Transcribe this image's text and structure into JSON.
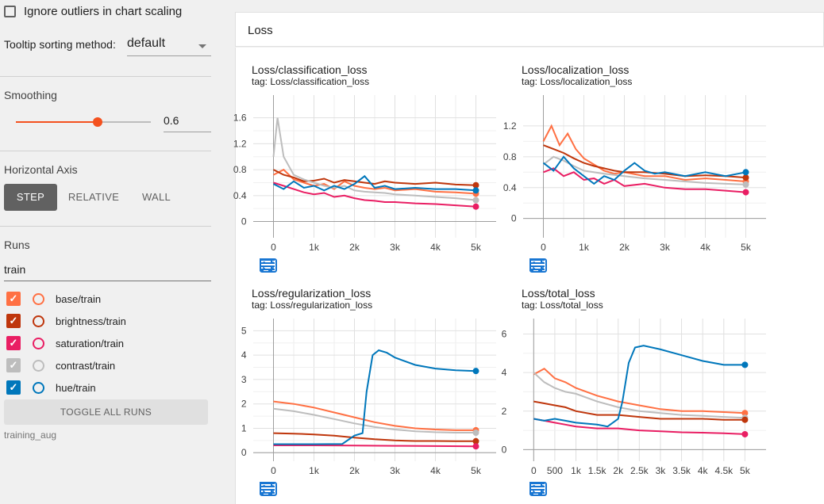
{
  "sidebar": {
    "ignore_outliers_label": "Ignore outliers in chart scaling",
    "tooltip_sorting_label": "Tooltip sorting method:",
    "tooltip_sorting_value": "default",
    "smoothing_label": "Smoothing",
    "smoothing_value": "0.6",
    "smoothing_fraction": 0.6,
    "horizontal_axis_label": "Horizontal Axis",
    "axis_options": [
      "STEP",
      "RELATIVE",
      "WALL"
    ],
    "axis_selected": "STEP",
    "runs_label": "Runs",
    "runs_filter_value": "train",
    "runs": [
      {
        "name": "base/train",
        "color": "#ff7043",
        "checked": true
      },
      {
        "name": "brightness/train",
        "color": "#bf360c",
        "checked": true
      },
      {
        "name": "saturation/train",
        "color": "#e91e63",
        "checked": true
      },
      {
        "name": "contrast/train",
        "color": "#bdbdbd",
        "checked": true
      },
      {
        "name": "hue/train",
        "color": "#0077bb",
        "checked": true
      }
    ],
    "toggle_all_label": "TOGGLE ALL RUNS",
    "experiment_name": "training_aug"
  },
  "main": {
    "section_title": "Loss"
  },
  "colors": {
    "accent": "#f4511e",
    "tool_icon": "#1976d2"
  },
  "chart_data": [
    {
      "type": "line",
      "title": "Loss/classification_loss",
      "tag": "tag: Loss/classification_loss",
      "xticks": [
        0,
        1000,
        2000,
        3000,
        4000,
        5000
      ],
      "xtick_labels": [
        "0",
        "1k",
        "2k",
        "3k",
        "4k",
        "5k"
      ],
      "yticks": [
        0,
        0.4,
        0.8,
        1.2,
        1.6
      ],
      "ytick_labels": [
        "0",
        "0.4",
        "0.8",
        "1.2",
        "1.6"
      ],
      "xlim": [
        -500,
        5500
      ],
      "ylim": [
        -0.25,
        1.95
      ],
      "series": [
        {
          "color": "#ff7043",
          "x": [
            0,
            250,
            500,
            750,
            1000,
            1250,
            1500,
            1750,
            2000,
            2250,
            2500,
            2750,
            3000,
            3500,
            4000,
            4500,
            5000
          ],
          "y": [
            0.72,
            0.8,
            0.65,
            0.6,
            0.55,
            0.58,
            0.5,
            0.62,
            0.55,
            0.52,
            0.5,
            0.52,
            0.48,
            0.5,
            0.46,
            0.45,
            0.43
          ]
        },
        {
          "color": "#bf360c",
          "x": [
            0,
            250,
            500,
            750,
            1000,
            1250,
            1500,
            1750,
            2000,
            2250,
            2500,
            2750,
            3000,
            3500,
            4000,
            4500,
            5000
          ],
          "y": [
            0.8,
            0.72,
            0.68,
            0.62,
            0.63,
            0.66,
            0.6,
            0.64,
            0.62,
            0.6,
            0.58,
            0.62,
            0.6,
            0.58,
            0.6,
            0.57,
            0.56
          ]
        },
        {
          "color": "#e91e63",
          "x": [
            0,
            250,
            500,
            750,
            1000,
            1250,
            1500,
            1750,
            2000,
            2250,
            2500,
            2750,
            3000,
            3500,
            4000,
            4500,
            5000
          ],
          "y": [
            0.6,
            0.55,
            0.5,
            0.45,
            0.42,
            0.44,
            0.38,
            0.4,
            0.36,
            0.33,
            0.32,
            0.3,
            0.3,
            0.28,
            0.27,
            0.25,
            0.23
          ]
        },
        {
          "color": "#bdbdbd",
          "x": [
            0,
            100,
            250,
            500,
            750,
            1000,
            1250,
            1500,
            1750,
            2000,
            2250,
            2500,
            2750,
            3000,
            3500,
            4000,
            4500,
            5000
          ],
          "y": [
            1.0,
            1.6,
            1.0,
            0.72,
            0.65,
            0.6,
            0.55,
            0.52,
            0.55,
            0.48,
            0.46,
            0.45,
            0.44,
            0.42,
            0.4,
            0.38,
            0.36,
            0.33
          ]
        },
        {
          "color": "#0077bb",
          "x": [
            0,
            250,
            500,
            750,
            1000,
            1250,
            1500,
            1750,
            2000,
            2250,
            2500,
            2750,
            3000,
            3500,
            4000,
            4500,
            5000
          ],
          "y": [
            0.58,
            0.5,
            0.62,
            0.52,
            0.55,
            0.48,
            0.55,
            0.5,
            0.58,
            0.7,
            0.52,
            0.55,
            0.5,
            0.52,
            0.5,
            0.5,
            0.48
          ]
        }
      ]
    },
    {
      "type": "line",
      "title": "Loss/localization_loss",
      "tag": "tag: Loss/localization_loss",
      "xticks": [
        0,
        1000,
        2000,
        3000,
        4000,
        5000
      ],
      "xtick_labels": [
        "0",
        "1k",
        "2k",
        "3k",
        "4k",
        "5k"
      ],
      "yticks": [
        0,
        0.4,
        0.8,
        1.2
      ],
      "ytick_labels": [
        "0",
        "0.4",
        "0.8",
        "1.2"
      ],
      "xlim": [
        -500,
        5500
      ],
      "ylim": [
        -0.25,
        1.6
      ],
      "series": [
        {
          "color": "#ff7043",
          "x": [
            0,
            200,
            400,
            600,
            800,
            1000,
            1250,
            1500,
            1750,
            2000,
            2500,
            3000,
            3500,
            4000,
            4500,
            5000
          ],
          "y": [
            1.0,
            1.2,
            0.95,
            1.1,
            0.9,
            0.78,
            0.7,
            0.62,
            0.58,
            0.6,
            0.55,
            0.55,
            0.5,
            0.52,
            0.5,
            0.48
          ]
        },
        {
          "color": "#bf360c",
          "x": [
            0,
            250,
            500,
            750,
            1000,
            1250,
            1500,
            1750,
            2000,
            2500,
            3000,
            3500,
            4000,
            4500,
            5000
          ],
          "y": [
            0.95,
            0.9,
            0.85,
            0.78,
            0.72,
            0.68,
            0.65,
            0.62,
            0.6,
            0.6,
            0.58,
            0.55,
            0.56,
            0.55,
            0.53
          ]
        },
        {
          "color": "#e91e63",
          "x": [
            0,
            250,
            500,
            750,
            1000,
            1250,
            1500,
            1750,
            2000,
            2500,
            3000,
            3500,
            4000,
            4500,
            5000
          ],
          "y": [
            0.6,
            0.65,
            0.55,
            0.6,
            0.5,
            0.52,
            0.45,
            0.5,
            0.42,
            0.45,
            0.4,
            0.38,
            0.38,
            0.36,
            0.34
          ]
        },
        {
          "color": "#bdbdbd",
          "x": [
            0,
            250,
            500,
            750,
            1000,
            1500,
            2000,
            2500,
            3000,
            3500,
            4000,
            4500,
            5000
          ],
          "y": [
            0.7,
            0.8,
            0.75,
            0.68,
            0.62,
            0.58,
            0.55,
            0.52,
            0.5,
            0.48,
            0.46,
            0.45,
            0.44
          ]
        },
        {
          "color": "#0077bb",
          "x": [
            0,
            250,
            500,
            750,
            1000,
            1250,
            1500,
            1750,
            2000,
            2250,
            2500,
            2750,
            3000,
            3500,
            4000,
            4500,
            5000
          ],
          "y": [
            0.72,
            0.62,
            0.8,
            0.65,
            0.55,
            0.45,
            0.55,
            0.5,
            0.62,
            0.72,
            0.62,
            0.58,
            0.6,
            0.55,
            0.6,
            0.55,
            0.6
          ]
        }
      ]
    },
    {
      "type": "line",
      "title": "Loss/regularization_loss",
      "tag": "tag: Loss/regularization_loss",
      "xticks": [
        0,
        1000,
        2000,
        3000,
        4000,
        5000
      ],
      "xtick_labels": [
        "0",
        "1k",
        "2k",
        "3k",
        "4k",
        "5k"
      ],
      "yticks": [
        0,
        1,
        2,
        3,
        4,
        5
      ],
      "ytick_labels": [
        "0",
        "1",
        "2",
        "3",
        "4",
        "5"
      ],
      "xlim": [
        -500,
        5500
      ],
      "ylim": [
        -0.35,
        5.5
      ],
      "series": [
        {
          "color": "#ff7043",
          "x": [
            0,
            500,
            1000,
            1500,
            2000,
            2500,
            3000,
            3500,
            4000,
            4500,
            5000
          ],
          "y": [
            2.1,
            2.0,
            1.85,
            1.65,
            1.45,
            1.25,
            1.1,
            1.0,
            0.95,
            0.92,
            0.92
          ]
        },
        {
          "color": "#bdbdbd",
          "x": [
            0,
            500,
            1000,
            1500,
            2000,
            2500,
            3000,
            3500,
            4000,
            4500,
            5000
          ],
          "y": [
            1.8,
            1.7,
            1.55,
            1.38,
            1.2,
            1.05,
            0.95,
            0.88,
            0.84,
            0.82,
            0.82
          ]
        },
        {
          "color": "#bf360c",
          "x": [
            0,
            500,
            1000,
            1500,
            2000,
            2500,
            3000,
            3500,
            4000,
            4500,
            5000
          ],
          "y": [
            0.8,
            0.78,
            0.75,
            0.7,
            0.62,
            0.55,
            0.5,
            0.48,
            0.48,
            0.47,
            0.47
          ]
        },
        {
          "color": "#e91e63",
          "x": [
            0,
            1000,
            2000,
            3000,
            4000,
            5000
          ],
          "y": [
            0.3,
            0.3,
            0.29,
            0.28,
            0.27,
            0.26
          ]
        },
        {
          "color": "#0077bb",
          "x": [
            0,
            1000,
            1700,
            2000,
            2200,
            2300,
            2450,
            2600,
            2800,
            3000,
            3500,
            4000,
            4500,
            5000
          ],
          "y": [
            0.35,
            0.35,
            0.36,
            0.7,
            0.8,
            2.5,
            4.0,
            4.2,
            4.1,
            3.9,
            3.6,
            3.45,
            3.38,
            3.35
          ]
        }
      ]
    },
    {
      "type": "line",
      "title": "Loss/total_loss",
      "tag": "tag: Loss/total_loss",
      "xticks": [
        0,
        500,
        1000,
        1500,
        2000,
        2500,
        3000,
        3500,
        4000,
        4500,
        5000
      ],
      "xtick_labels": [
        "0",
        "500",
        "1k",
        "1.5k",
        "2k",
        "2.5k",
        "3k",
        "3.5k",
        "4k",
        "4.5k",
        "5k"
      ],
      "yticks": [
        0,
        2,
        4,
        6
      ],
      "ytick_labels": [
        "0",
        "2",
        "4",
        "6"
      ],
      "xlim": [
        -250,
        5500
      ],
      "ylim": [
        -0.6,
        6.8
      ],
      "series": [
        {
          "color": "#ff7043",
          "x": [
            0,
            250,
            500,
            750,
            1000,
            1500,
            2000,
            2500,
            3000,
            3500,
            4000,
            4500,
            5000
          ],
          "y": [
            3.9,
            4.2,
            3.7,
            3.5,
            3.2,
            2.8,
            2.5,
            2.3,
            2.1,
            2.0,
            2.0,
            1.95,
            1.9
          ]
        },
        {
          "color": "#bdbdbd",
          "x": [
            0,
            250,
            500,
            750,
            1000,
            1500,
            2000,
            2500,
            3000,
            3500,
            4000,
            4500,
            5000
          ],
          "y": [
            4.0,
            3.5,
            3.2,
            3.0,
            2.9,
            2.5,
            2.2,
            2.0,
            1.9,
            1.8,
            1.75,
            1.7,
            1.65
          ]
        },
        {
          "color": "#bf360c",
          "x": [
            0,
            250,
            500,
            750,
            1000,
            1500,
            2000,
            2500,
            3000,
            3500,
            4000,
            4500,
            5000
          ],
          "y": [
            2.5,
            2.4,
            2.3,
            2.2,
            2.0,
            1.8,
            1.8,
            1.7,
            1.6,
            1.6,
            1.6,
            1.55,
            1.55
          ]
        },
        {
          "color": "#e91e63",
          "x": [
            0,
            250,
            500,
            750,
            1000,
            1500,
            2000,
            2500,
            3000,
            3500,
            4000,
            4500,
            5000
          ],
          "y": [
            1.6,
            1.5,
            1.4,
            1.3,
            1.2,
            1.1,
            1.1,
            1.0,
            0.95,
            0.9,
            0.88,
            0.85,
            0.8
          ]
        },
        {
          "color": "#0077bb",
          "x": [
            0,
            250,
            500,
            750,
            1000,
            1500,
            1750,
            2000,
            2100,
            2250,
            2400,
            2600,
            3000,
            3500,
            4000,
            4500,
            5000
          ],
          "y": [
            1.6,
            1.5,
            1.6,
            1.5,
            1.4,
            1.3,
            1.2,
            1.6,
            2.5,
            4.5,
            5.3,
            5.4,
            5.2,
            4.9,
            4.6,
            4.4,
            4.4
          ]
        }
      ]
    }
  ]
}
